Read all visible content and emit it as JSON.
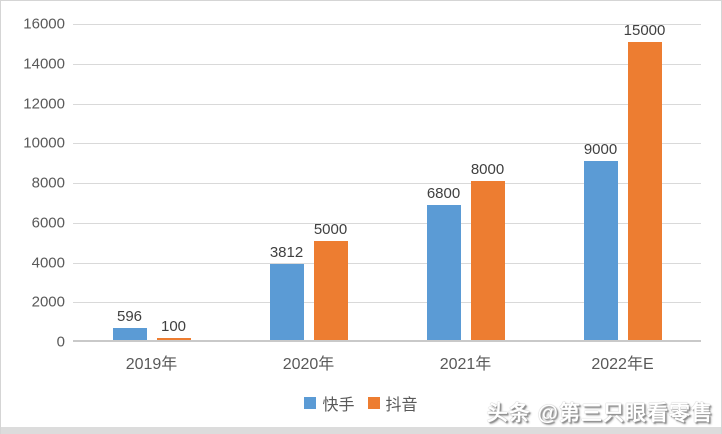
{
  "chart_data": {
    "type": "bar",
    "title": "",
    "xlabel": "",
    "ylabel": "",
    "categories": [
      "2019年",
      "2020年",
      "2021年",
      "2022年E"
    ],
    "series": [
      {
        "name": "快手",
        "color": "#5B9BD5",
        "values": [
          596,
          3812,
          6800,
          9000
        ]
      },
      {
        "name": "抖音",
        "color": "#ED7D31",
        "values": [
          100,
          5000,
          8000,
          15000
        ]
      }
    ],
    "ylim": [
      0,
      16000
    ],
    "y_ticks": [
      0,
      2000,
      4000,
      6000,
      8000,
      10000,
      12000,
      14000,
      16000
    ],
    "grid": true,
    "data_labels": true,
    "legend_position": "bottom"
  },
  "legend": {
    "items": [
      {
        "label": "快手",
        "color": "#5B9BD5"
      },
      {
        "label": "抖音",
        "color": "#ED7D31"
      }
    ]
  },
  "watermark": {
    "text": "头条 @第三只眼看零售"
  },
  "colors": {
    "kuaishou_blue": "#5B9BD5",
    "douyin_orange": "#ED7D31",
    "gridline": "#D9D9D9",
    "axis_line": "#C9C9C9",
    "axis_label": "#595959",
    "data_label": "#404040",
    "background": "#FFFFFF"
  }
}
